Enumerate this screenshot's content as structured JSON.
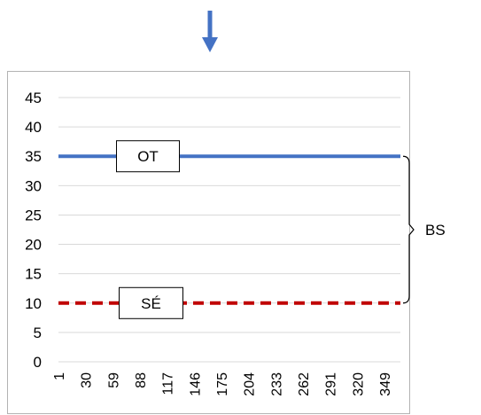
{
  "colors": {
    "arrow": "#4472C4",
    "series_ot": "#4472C4",
    "series_se": "#C00000",
    "grid": "#D9D9D9",
    "frame": "#B3B3B3",
    "text": "#000000"
  },
  "chart_data": {
    "type": "line",
    "x": {
      "start": 1,
      "end": 366,
      "tick_start": 1,
      "tick_step": 29
    },
    "x_tick_labels": [
      "1",
      "30",
      "59",
      "88",
      "117",
      "146",
      "175",
      "204",
      "233",
      "262",
      "291",
      "320",
      "349"
    ],
    "ylim": [
      0,
      45
    ],
    "y_ticks": [
      0,
      5,
      10,
      15,
      20,
      25,
      30,
      35,
      40,
      45
    ],
    "y_tick_labels": [
      "0",
      "5",
      "10",
      "15",
      "20",
      "25",
      "30",
      "35",
      "40",
      "45"
    ],
    "grid": true,
    "series": [
      {
        "key": "ot",
        "value": 35,
        "style": "solid",
        "label": "OT"
      },
      {
        "key": "se",
        "value": 10,
        "style": "dashed",
        "label": "SÉ"
      }
    ],
    "bracket": {
      "from": 10,
      "to": 35,
      "label": "BS"
    }
  }
}
